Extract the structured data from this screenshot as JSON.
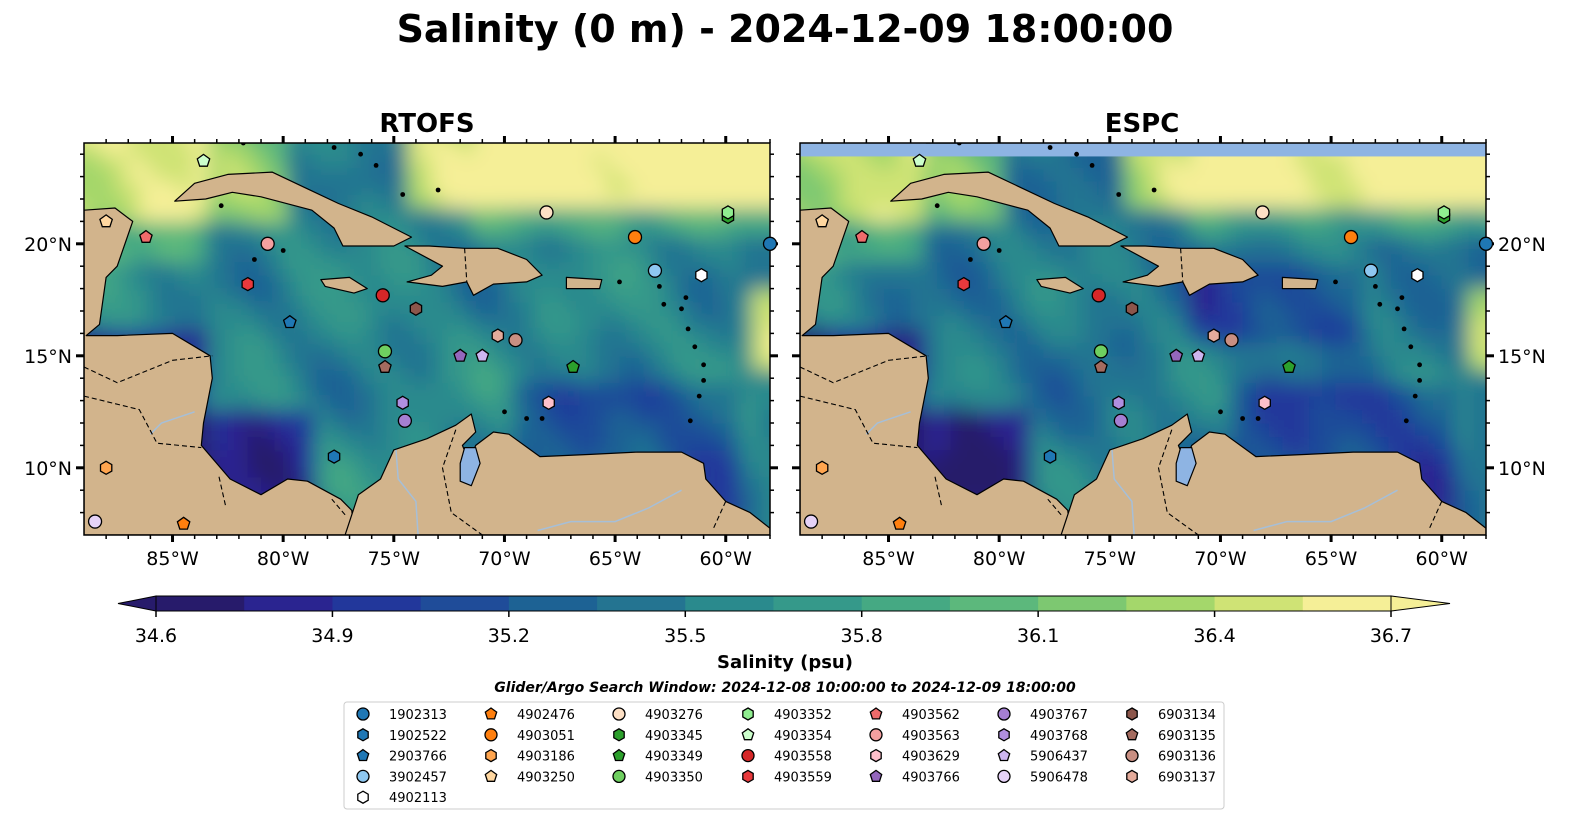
{
  "figure": {
    "title": "Salinity (0 m) - 2024-12-09 18:00:00",
    "search_window": "Glider/Argo Search Window: 2024-12-08 10:00:00 to 2024-12-09 18:00:00"
  },
  "chart_data": [
    {
      "type": "heatmap",
      "title": "RTOFS",
      "variable": "Salinity (psu)",
      "depth": "0 m",
      "xlim": [
        -89.0,
        -58.0
      ],
      "ylim": [
        7.0,
        24.5
      ],
      "xticks": [
        "85°W",
        "80°W",
        "75°W",
        "70°W",
        "65°W",
        "60°W"
      ],
      "yticks": [
        "10°N",
        "15°N",
        "20°N"
      ],
      "ytick_side": "left",
      "top_strip_missing": false
    },
    {
      "type": "heatmap",
      "title": "ESPC",
      "variable": "Salinity (psu)",
      "depth": "0 m",
      "xlim": [
        -89.0,
        -58.0
      ],
      "ylim": [
        7.0,
        24.5
      ],
      "xticks": [
        "85°W",
        "80°W",
        "75°W",
        "70°W",
        "65°W",
        "60°W"
      ],
      "yticks": [
        "10°N",
        "15°N",
        "20°N"
      ],
      "ytick_side": "right",
      "top_strip_missing": true
    }
  ],
  "colorbar": {
    "label": "Salinity (psu)",
    "min": 34.6,
    "max": 36.7,
    "ticks": [
      "34.6",
      "34.9",
      "35.2",
      "35.5",
      "35.8",
      "36.1",
      "36.4",
      "36.7"
    ],
    "extend": "both",
    "colors": [
      "#271b6b",
      "#2a2490",
      "#22379b",
      "#1f4c99",
      "#1d6294",
      "#247491",
      "#2a8a8d",
      "#35998a",
      "#45a983",
      "#5cb87c",
      "#7dc871",
      "#a4d76b",
      "#cfe375",
      "#f5ef97"
    ]
  },
  "colors": {
    "land": "#d2b48c",
    "missing_band": "#8eb4e3",
    "lake": "#8eb4e3",
    "river": "#a6bfd8"
  },
  "floats": [
    {
      "id": "1902313",
      "marker": "circle",
      "color": "#1f77b4",
      "lon": -58.0,
      "lat": 20.0
    },
    {
      "id": "1902522",
      "marker": "hexagon",
      "color": "#1f77b4",
      "lon": -77.7,
      "lat": 10.5
    },
    {
      "id": "2903766",
      "marker": "pentagon",
      "color": "#1f77b4",
      "lon": -79.7,
      "lat": 16.5
    },
    {
      "id": "3902457",
      "marker": "circle",
      "color": "#8ec7f0",
      "lon": -63.2,
      "lat": 18.8
    },
    {
      "id": "4902113",
      "marker": "hexagon",
      "color": "#ffffff",
      "lon": -61.1,
      "lat": 18.6
    },
    {
      "id": "4902476",
      "marker": "pentagon",
      "color": "#ff7f0e",
      "lon": -84.5,
      "lat": 7.5
    },
    {
      "id": "4903051",
      "marker": "circle",
      "color": "#ff7f0e",
      "lon": -64.1,
      "lat": 20.3
    },
    {
      "id": "4903186",
      "marker": "hexagon",
      "color": "#ffa54f",
      "lon": -88.0,
      "lat": 10.0
    },
    {
      "id": "4903250",
      "marker": "pentagon",
      "color": "#ffd7a0",
      "lon": -88.0,
      "lat": 21.0
    },
    {
      "id": "4903276",
      "marker": "circle",
      "color": "#fde0c5",
      "lon": -68.1,
      "lat": 21.4
    },
    {
      "id": "4903345",
      "marker": "hexagon",
      "color": "#2ca02c",
      "lon": -59.9,
      "lat": 21.2
    },
    {
      "id": "4903349",
      "marker": "pentagon",
      "color": "#2ca02c",
      "lon": -66.9,
      "lat": 14.5
    },
    {
      "id": "4903350",
      "marker": "circle",
      "color": "#6fcf60",
      "lon": -75.4,
      "lat": 15.2
    },
    {
      "id": "4903352",
      "marker": "hexagon",
      "color": "#90ee90",
      "lon": -59.9,
      "lat": 21.4
    },
    {
      "id": "4903354",
      "marker": "pentagon",
      "color": "#ccffcc",
      "lon": -83.6,
      "lat": 23.7
    },
    {
      "id": "4903558",
      "marker": "circle",
      "color": "#d62728",
      "lon": -75.5,
      "lat": 17.7
    },
    {
      "id": "4903559",
      "marker": "hexagon",
      "color": "#e8393c",
      "lon": -81.6,
      "lat": 18.2
    },
    {
      "id": "4903562",
      "marker": "pentagon",
      "color": "#ef6b6b",
      "lon": -86.2,
      "lat": 20.3
    },
    {
      "id": "4903563",
      "marker": "circle",
      "color": "#f4a0a0",
      "lon": -80.7,
      "lat": 20.0
    },
    {
      "id": "4903629",
      "marker": "hexagon",
      "color": "#ffc0cb",
      "lon": -68.0,
      "lat": 12.9
    },
    {
      "id": "4903766",
      "marker": "pentagon",
      "color": "#9467bd",
      "lon": -72.0,
      "lat": 15.0
    },
    {
      "id": "4903767",
      "marker": "circle",
      "color": "#a57fd2",
      "lon": -74.5,
      "lat": 12.1
    },
    {
      "id": "4903768",
      "marker": "hexagon",
      "color": "#b08fe0",
      "lon": -74.6,
      "lat": 12.9
    },
    {
      "id": "5906437",
      "marker": "pentagon",
      "color": "#cdb5f0",
      "lon": -71.0,
      "lat": 15.0
    },
    {
      "id": "5906478",
      "marker": "circle",
      "color": "#e5d2f7",
      "lon": -88.5,
      "lat": 7.6
    },
    {
      "id": "6903134",
      "marker": "hexagon",
      "color": "#8c564b",
      "lon": -74.0,
      "lat": 17.1
    },
    {
      "id": "6903135",
      "marker": "pentagon",
      "color": "#a46b5f",
      "lon": -75.4,
      "lat": 14.5
    },
    {
      "id": "6903136",
      "marker": "circle",
      "color": "#c98f82",
      "lon": -69.5,
      "lat": 15.7
    },
    {
      "id": "6903137",
      "marker": "hexagon",
      "color": "#e4ab9b",
      "lon": -70.3,
      "lat": 15.9
    }
  ]
}
